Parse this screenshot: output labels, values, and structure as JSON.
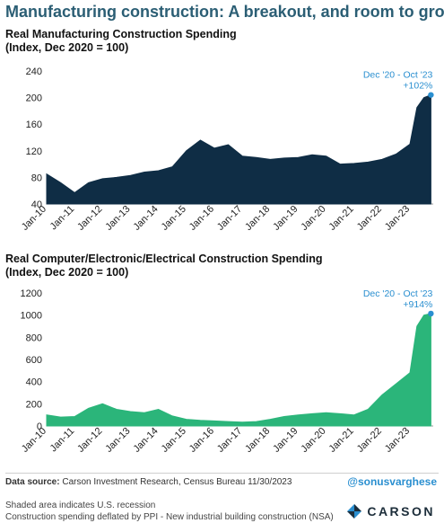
{
  "header": {
    "title": "Manufacturing construction: A breakout, and room to grow"
  },
  "chart_data": [
    {
      "type": "area",
      "title_line1": "Real Manufacturing Construction Spending",
      "title_line2": "(Index, Dec 2020 = 100)",
      "x_labels": [
        "Jan-10",
        "Jan-11",
        "Jan-12",
        "Jan-13",
        "Jan-14",
        "Jan-15",
        "Jan-16",
        "Jan-17",
        "Jan-18",
        "Jan-19",
        "Jan-20",
        "Jan-21",
        "Jan-22",
        "Jan-23"
      ],
      "ylim": [
        40,
        240
      ],
      "yticks": [
        40,
        80,
        120,
        160,
        200,
        240
      ],
      "annotation_line1": "Dec '20 - Oct '23",
      "annotation_line2": "+102%",
      "color": "#0f2d45",
      "annotation_color": "#2a8fd0",
      "series": [
        {
          "x": [
            "Jan-10",
            "Jul-10",
            "Jan-11",
            "Jul-11",
            "Jan-12",
            "Jul-12",
            "Jan-13",
            "Jul-13",
            "Jan-14",
            "Jul-14",
            "Jan-15",
            "Jul-15",
            "Jan-16",
            "Jul-16",
            "Jan-17",
            "Jul-17",
            "Jan-18",
            "Jul-18",
            "Jan-19",
            "Jul-19",
            "Jan-20",
            "Jul-20",
            "Jan-21",
            "Jul-21",
            "Jan-22",
            "Jul-22",
            "Jan-23",
            "Apr-23",
            "Jul-23",
            "Oct-23"
          ],
          "values": [
            85,
            72,
            57,
            72,
            78,
            80,
            83,
            88,
            90,
            96,
            120,
            136,
            124,
            129,
            112,
            110,
            107,
            109,
            110,
            114,
            112,
            100,
            101,
            103,
            107,
            115,
            130,
            185,
            200,
            204
          ]
        }
      ]
    },
    {
      "type": "area",
      "title_line1": "Real Computer/Electronic/Electrical Construction Spending",
      "title_line2": "(Index, Dec 2020 = 100)",
      "x_labels": [
        "Jan-10",
        "Jan-11",
        "Jan-12",
        "Jan-13",
        "Jan-14",
        "Jan-15",
        "Jan-16",
        "Jan-17",
        "Jan-18",
        "Jan-19",
        "Jan-20",
        "Jan-21",
        "Jan-22",
        "Jan-23"
      ],
      "ylim": [
        0,
        1200
      ],
      "yticks": [
        0,
        200,
        400,
        600,
        800,
        1000,
        1200
      ],
      "annotation_line1": "Dec '20 - Oct '23",
      "annotation_line2": "+914%",
      "color": "#2bb57a",
      "annotation_color": "#2a8fd0",
      "series": [
        {
          "x": [
            "Jan-10",
            "Jul-10",
            "Jan-11",
            "Jul-11",
            "Jan-12",
            "Jul-12",
            "Jan-13",
            "Jul-13",
            "Jan-14",
            "Jul-14",
            "Jan-15",
            "Jul-15",
            "Jan-16",
            "Jul-16",
            "Jan-17",
            "Jul-17",
            "Jan-18",
            "Jul-18",
            "Jan-19",
            "Jul-19",
            "Jan-20",
            "Jul-20",
            "Jan-21",
            "Jul-21",
            "Jan-22",
            "Jul-22",
            "Jan-23",
            "Apr-23",
            "Jul-23",
            "Oct-23"
          ],
          "values": [
            100,
            80,
            85,
            160,
            200,
            150,
            130,
            120,
            150,
            90,
            60,
            50,
            45,
            40,
            35,
            40,
            60,
            85,
            100,
            110,
            120,
            110,
            100,
            150,
            280,
            380,
            480,
            900,
            1000,
            1014
          ]
        }
      ]
    }
  ],
  "footer": {
    "source_label": "Data source:",
    "source_text": "Carson Investment Research, Census Bureau   11/30/2023",
    "handle": "@sonusvarghese",
    "note1": "Shaded area indicates U.S. recession",
    "note2": "Construction spending deflated by PPI - New industrial building construction (NSA)",
    "logo_text": "CARSON"
  }
}
